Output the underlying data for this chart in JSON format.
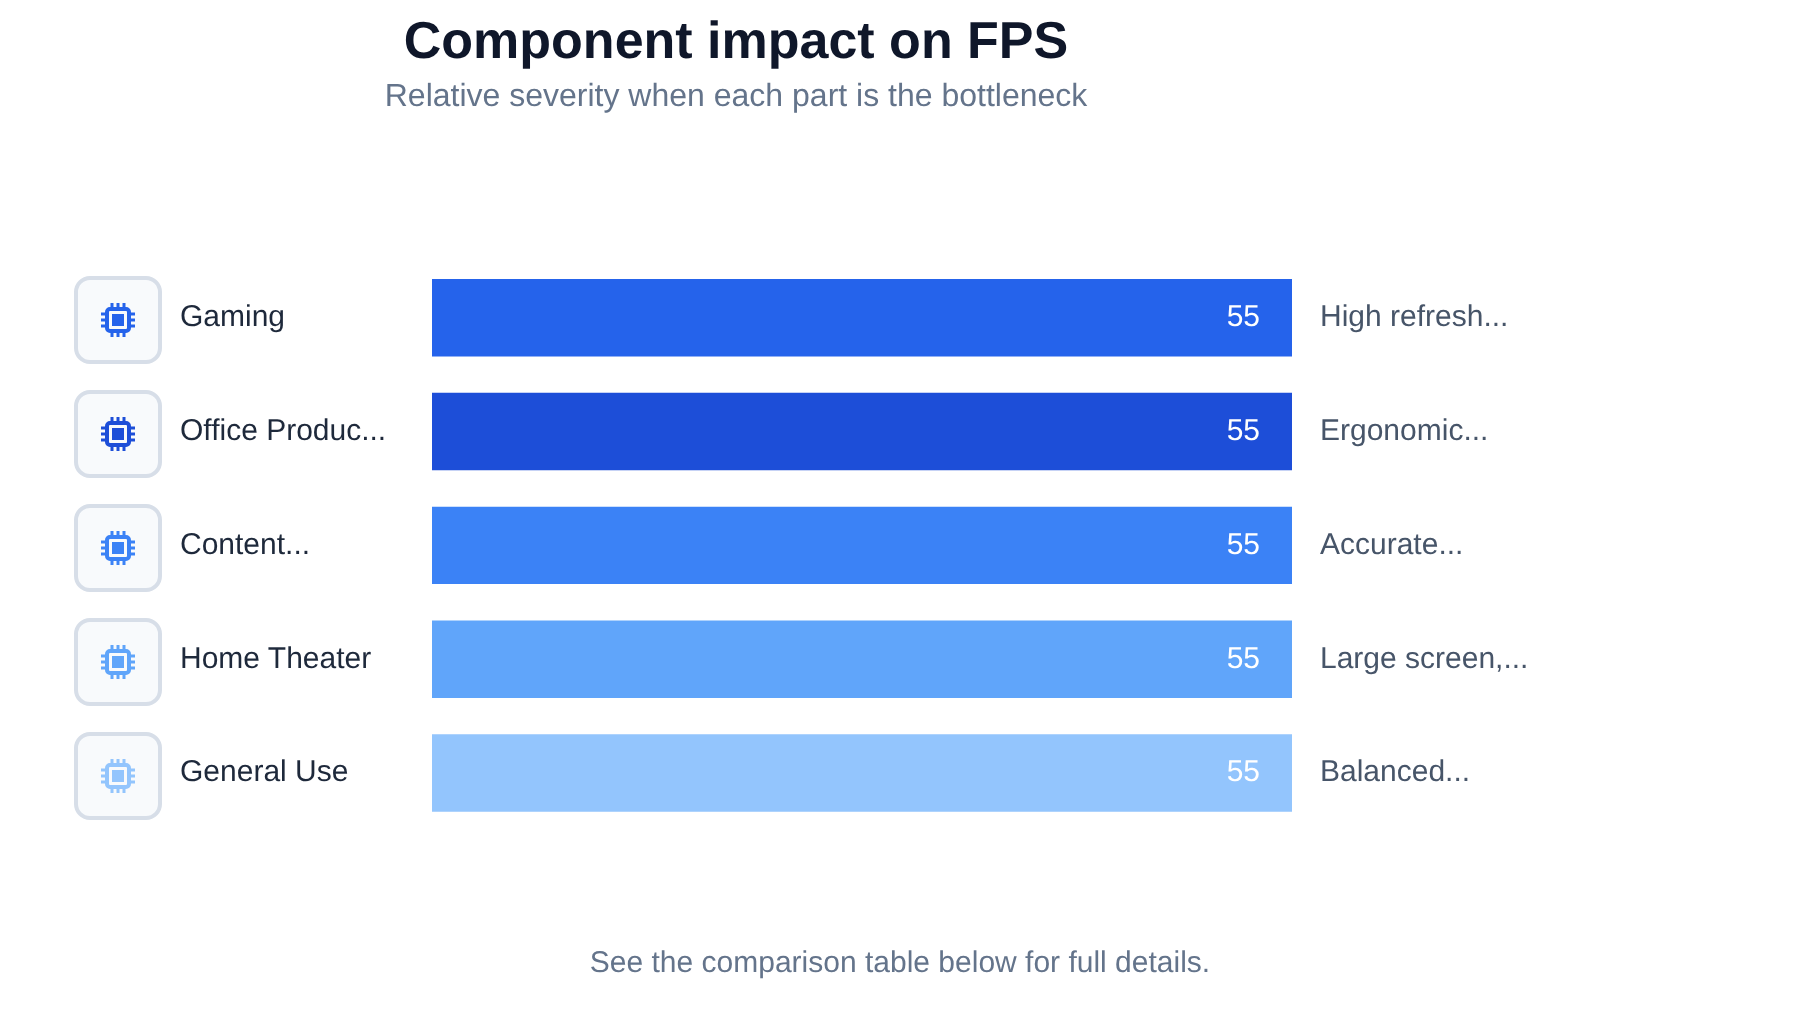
{
  "chart_data": {
    "type": "bar",
    "orientation": "horizontal",
    "title": "Component impact on FPS",
    "subtitle": "Relative severity when each part is the bottleneck",
    "categories": [
      "Gaming",
      "Office Produc...",
      "Content...",
      "Home Theater",
      "General Use"
    ],
    "values": [
      55,
      55,
      55,
      55,
      55
    ],
    "colors": [
      "#2563eb",
      "#1d4ed8",
      "#3b82f6",
      "#60a5fa",
      "#93c5fd"
    ],
    "data_labels": true,
    "grid": false,
    "legend": false,
    "tick_labels": "y",
    "annotations": [
      "High refresh...",
      "Ergonomic...",
      "Accurate...",
      "Large screen,...",
      "Balanced...",
      "See the comparison table below for full details."
    ]
  }
}
